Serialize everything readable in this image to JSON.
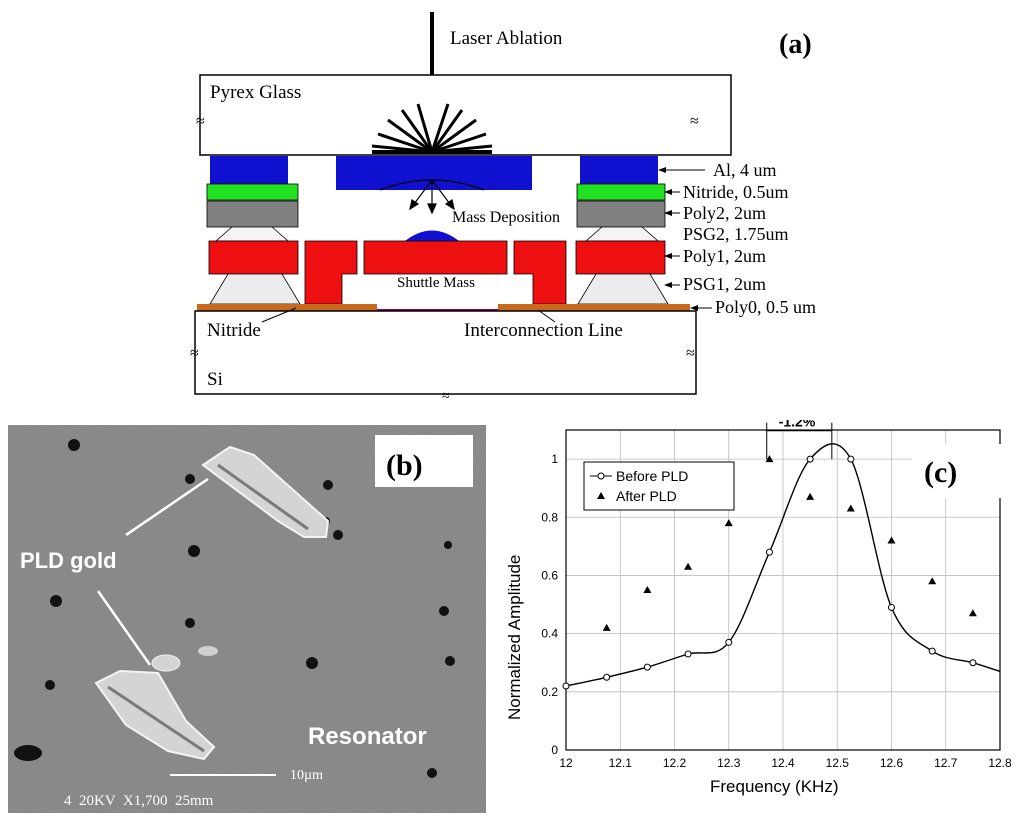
{
  "panel_a": {
    "tag": "(a)",
    "laser_label": "Laser Ablation",
    "glass_label": "Pyrex Glass",
    "mass_deposition": "Mass Deposition",
    "shuttle_mass": "Shuttle Mass",
    "nitride_label": "Nitride",
    "interconnect_label": "Interconnection Line",
    "si_label": "Si",
    "break_mark": "≈",
    "layers": [
      {
        "label": "Al, 4 um",
        "color": "#1010d0"
      },
      {
        "label": "Nitride, 0.5um",
        "color": "#20e020"
      },
      {
        "label": "Poly2, 2um",
        "color": "#808080"
      },
      {
        "label": "PSG2, 1.75um",
        "color": "#ffffff"
      },
      {
        "label": "Poly1, 2um",
        "color": "#ee1010"
      },
      {
        "label": "PSG1, 2um",
        "color": "#ececec"
      },
      {
        "label": "Poly0, 0.5 um",
        "color": "#c86a1e"
      }
    ]
  },
  "panel_b": {
    "tag": "(b)",
    "pld_label": "PLD gold",
    "resonator_label": "Resonator",
    "scale_label": "10µm",
    "sem_info": "4  20KV  X1,700  25mm"
  },
  "chart_data": {
    "type": "line",
    "tag": "(c)",
    "xlabel": "Frequency (KHz)",
    "ylabel": "Normalized Amplitude",
    "xlim": [
      12,
      12.8
    ],
    "ylim": [
      0,
      1.1
    ],
    "x_ticks": [
      "12",
      "12.1",
      "12.2",
      "12.3",
      "12.4",
      "12.5",
      "12.6",
      "12.7",
      "12.8"
    ],
    "y_ticks": [
      "0",
      "0.2",
      "0.4",
      "0.6",
      "0.8",
      "1"
    ],
    "shift_label": "-1.2%",
    "grid": true,
    "legend_position": "top-left",
    "series": [
      {
        "name": "Before PLD",
        "marker": "circle",
        "line": true,
        "x": [
          12.0,
          12.075,
          12.15,
          12.225,
          12.3,
          12.375,
          12.45,
          12.525,
          12.6,
          12.675,
          12.75
        ],
        "y": [
          0.22,
          0.25,
          0.285,
          0.33,
          0.37,
          0.68,
          1.0,
          1.0,
          0.49,
          0.34,
          0.3
        ]
      },
      {
        "name": "After PLD",
        "marker": "triangle",
        "line": false,
        "x": [
          12.075,
          12.15,
          12.225,
          12.3,
          12.375,
          12.45,
          12.525,
          12.6,
          12.675,
          12.75
        ],
        "y": [
          0.42,
          0.55,
          0.63,
          0.78,
          1.0,
          0.87,
          0.83,
          0.72,
          0.58,
          0.47
        ]
      }
    ]
  }
}
